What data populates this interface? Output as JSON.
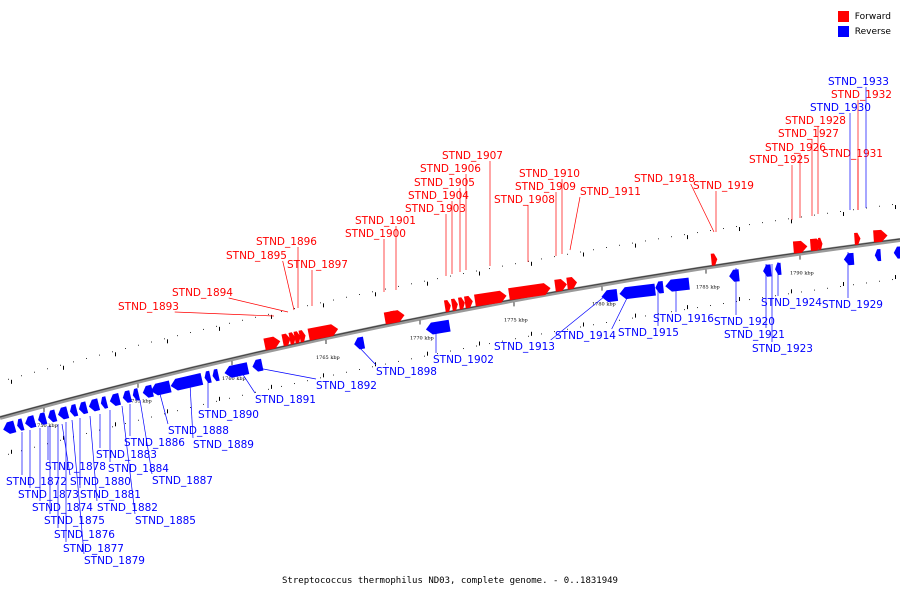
{
  "legend": {
    "forward_label": "Forward",
    "forward_color": "#ff0000",
    "reverse_label": "Reverse",
    "reverse_color": "#0000ff"
  },
  "caption": "Streptococcus thermophilus ND03, complete genome. - 0..1831949",
  "ticks": [
    "1750 kbp",
    "1755 kbp",
    "1760 kbp",
    "1765 kbp",
    "1770 kbp",
    "1775 kbp",
    "1780 kbp",
    "1785 kbp",
    "1790 kbp"
  ],
  "forward_genes": [
    "STND_1893",
    "STND_1894",
    "STND_1895",
    "STND_1896",
    "STND_1897",
    "STND_1900",
    "STND_1901",
    "STND_1903",
    "STND_1904",
    "STND_1905",
    "STND_1906",
    "STND_1907",
    "STND_1908",
    "STND_1909",
    "STND_1910",
    "STND_1911",
    "STND_1918",
    "STND_1919",
    "STND_1925",
    "STND_1926",
    "STND_1927",
    "STND_1928",
    "STND_1931",
    "STND_1932"
  ],
  "reverse_genes": [
    "STND_1872",
    "STND_1873",
    "STND_1874",
    "STND_1875",
    "STND_1876",
    "STND_1877",
    "STND_1878",
    "STND_1879",
    "STND_1880",
    "STND_1881",
    "STND_1882",
    "STND_1883",
    "STND_1884",
    "STND_1885",
    "STND_1886",
    "STND_1887",
    "STND_1888",
    "STND_1889",
    "STND_1890",
    "STND_1891",
    "STND_1892",
    "STND_1898",
    "STND_1902",
    "STND_1913",
    "STND_1914",
    "STND_1915",
    "STND_1916",
    "STND_1920",
    "STND_1921",
    "STND_1923",
    "STND_1924",
    "STND_1929",
    "STND_1930",
    "STND_1933"
  ]
}
